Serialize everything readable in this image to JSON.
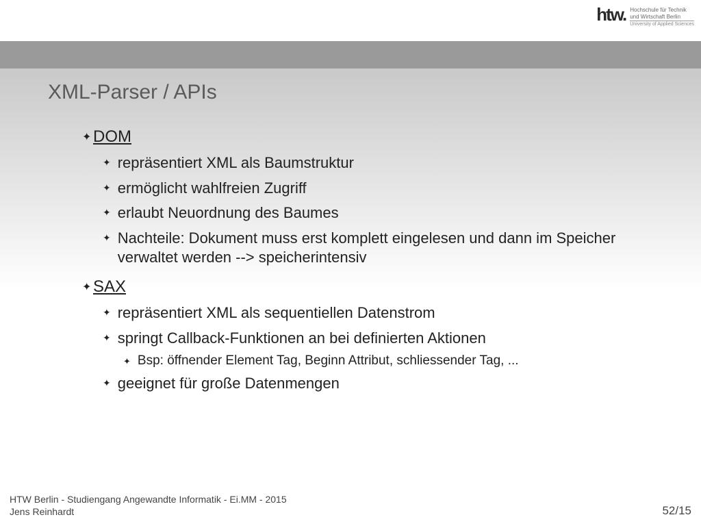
{
  "logo": {
    "mark": "htw.",
    "line1": "Hochschule für Technik",
    "line2": "und Wirtschaft Berlin",
    "line3": "University of Applied Sciences"
  },
  "title": "XML-Parser / APIs",
  "sections": [
    {
      "heading": "DOM",
      "items": [
        "repräsentiert XML als Baumstruktur",
        "ermöglicht wahlfreien Zugriff",
        "erlaubt Neuordnung des Baumes",
        "Nachteile: Dokument muss erst komplett eingelesen und dann im Speicher verwaltet werden --> speicherintensiv"
      ]
    },
    {
      "heading": "SAX",
      "items": [
        "repräsentiert XML als sequentiellen Datenstrom",
        "springt Callback-Funktionen an bei definierten Aktionen",
        "geeignet für große Datenmengen"
      ],
      "subitems_after": {
        "1": [
          "Bsp: öffnender Element Tag, Beginn Attribut, schliessender Tag, ..."
        ]
      }
    }
  ],
  "footer": {
    "left_line1": "HTW Berlin - Studiengang Angewandte Informatik - Ei.MM - 2015",
    "left_line2": "Jens Reinhardt",
    "page": "52/15"
  },
  "bullets": {
    "l1": "✦",
    "l2": "✦",
    "l3": "✦"
  },
  "colors": {
    "title": "#5a5a5a",
    "text": "#222222",
    "band": "#9a9a9a"
  }
}
